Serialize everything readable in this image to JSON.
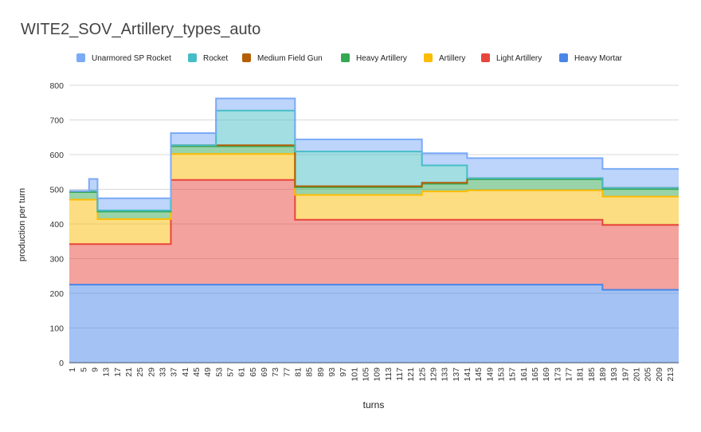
{
  "chart_data": {
    "type": "area",
    "stacked": true,
    "step": true,
    "title": "WITE2_SOV_Artillery_types_auto",
    "xlabel": "turns",
    "ylabel": "production per turn",
    "ylim": [
      0,
      800
    ],
    "yticks": [
      0,
      100,
      200,
      300,
      400,
      500,
      600,
      700,
      800
    ],
    "xlim": [
      1,
      216
    ],
    "xticks": [
      1,
      5,
      9,
      13,
      17,
      21,
      25,
      29,
      33,
      37,
      41,
      45,
      49,
      53,
      57,
      61,
      65,
      69,
      73,
      77,
      81,
      85,
      89,
      93,
      97,
      101,
      105,
      109,
      113,
      117,
      121,
      125,
      129,
      133,
      137,
      141,
      145,
      149,
      153,
      157,
      161,
      165,
      169,
      173,
      177,
      181,
      185,
      189,
      193,
      197,
      201,
      205,
      209,
      213
    ],
    "grid": true,
    "legend_position": "top",
    "turns": [
      1,
      8,
      11,
      37,
      53,
      81,
      121,
      126,
      142,
      190
    ],
    "series": [
      {
        "name": "Heavy Mortar",
        "color": "#4a86e8",
        "values": [
          225,
          225,
          225,
          225,
          225,
          225,
          225,
          225,
          225,
          210
        ]
      },
      {
        "name": "Light Artillery",
        "color": "#e8453c",
        "values": [
          117,
          117,
          117,
          302,
          302,
          187,
          187,
          187,
          187,
          187
        ]
      },
      {
        "name": "Artillery",
        "color": "#fbbc04",
        "values": [
          128,
          128,
          72,
          75,
          75,
          72,
          72,
          82,
          85,
          82
        ]
      },
      {
        "name": "Heavy Artillery",
        "color": "#34a853",
        "values": [
          22,
          22,
          22,
          22,
          22,
          22,
          22,
          22,
          32,
          22
        ]
      },
      {
        "name": "Medium Field Gun",
        "color": "#b45f06",
        "values": [
          3,
          3,
          3,
          3,
          3,
          3,
          3,
          3,
          3,
          3
        ]
      },
      {
        "name": "Rocket",
        "color": "#46bdc6",
        "values": [
          0,
          0,
          0,
          0,
          100,
          100,
          100,
          50,
          0,
          0
        ]
      },
      {
        "name": "Unarmored SP Rocket",
        "color": "#7baaf7",
        "values": [
          0,
          35,
          35,
          35,
          35,
          35,
          35,
          35,
          58,
          55
        ]
      }
    ]
  }
}
